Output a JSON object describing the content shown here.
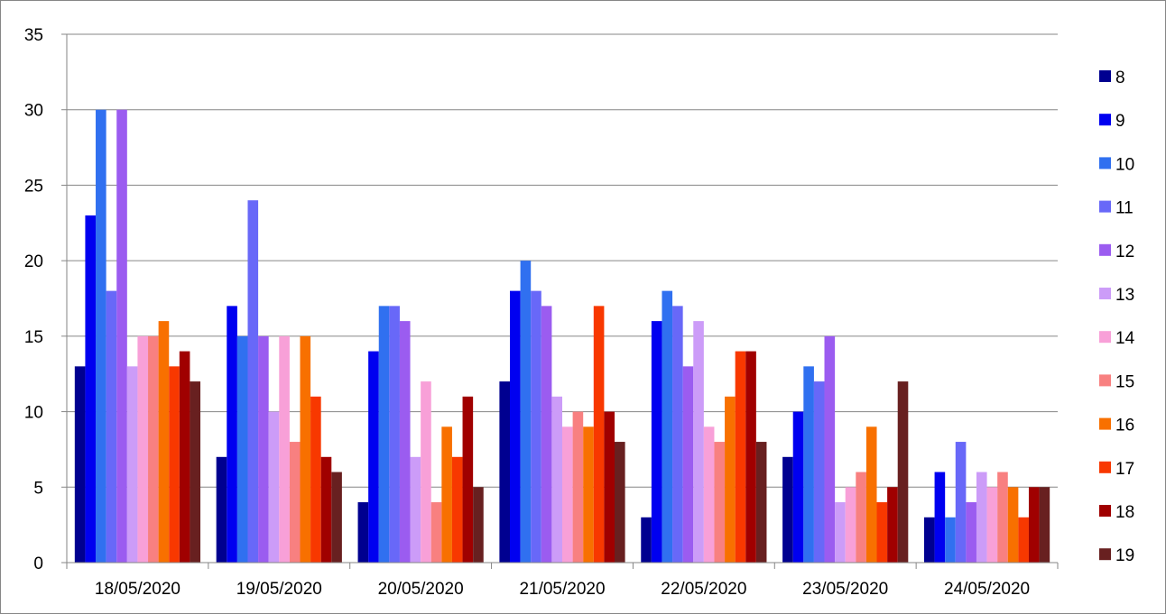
{
  "chart_data": {
    "type": "bar",
    "title": "",
    "xlabel": "",
    "ylabel": "",
    "ylim": [
      0,
      35
    ],
    "yticks": [
      "0",
      "5",
      "10",
      "15",
      "20",
      "25",
      "30",
      "35"
    ],
    "grid": "horizontal",
    "legend_position": "right",
    "categories": [
      "18/05/2020",
      "19/05/2020",
      "20/05/2020",
      "21/05/2020",
      "22/05/2020",
      "23/05/2020",
      "24/05/2020"
    ],
    "series": [
      {
        "name": "8",
        "color": "#000090",
        "values": [
          13,
          7,
          4,
          12,
          3,
          7,
          3
        ]
      },
      {
        "name": "9",
        "color": "#0000f0",
        "values": [
          23,
          17,
          14,
          18,
          16,
          10,
          6
        ]
      },
      {
        "name": "10",
        "color": "#3070f0",
        "values": [
          30,
          15,
          17,
          20,
          18,
          13,
          3
        ]
      },
      {
        "name": "11",
        "color": "#6868f8",
        "values": [
          18,
          24,
          17,
          18,
          17,
          12,
          8
        ]
      },
      {
        "name": "12",
        "color": "#9b5cf0",
        "values": [
          30,
          15,
          16,
          17,
          13,
          15,
          4
        ]
      },
      {
        "name": "13",
        "color": "#cc9cf8",
        "values": [
          13,
          10,
          7,
          11,
          16,
          4,
          6
        ]
      },
      {
        "name": "14",
        "color": "#f8a0d8",
        "values": [
          15,
          15,
          12,
          9,
          9,
          5,
          5
        ]
      },
      {
        "name": "15",
        "color": "#f88080",
        "values": [
          15,
          8,
          4,
          10,
          8,
          6,
          6
        ]
      },
      {
        "name": "16",
        "color": "#f87000",
        "values": [
          16,
          15,
          9,
          9,
          11,
          9,
          5
        ]
      },
      {
        "name": "17",
        "color": "#f83800",
        "values": [
          13,
          11,
          7,
          17,
          14,
          4,
          3
        ]
      },
      {
        "name": "18",
        "color": "#a00000",
        "values": [
          14,
          7,
          11,
          10,
          14,
          5,
          5
        ]
      },
      {
        "name": "19",
        "color": "#682020",
        "values": [
          12,
          6,
          5,
          8,
          8,
          12,
          5
        ]
      }
    ]
  }
}
